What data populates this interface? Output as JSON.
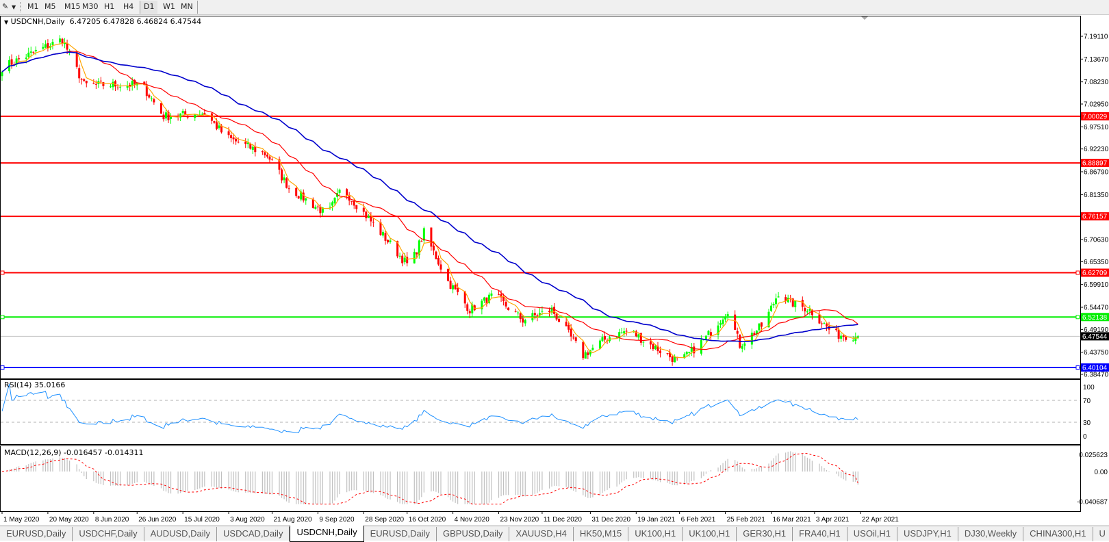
{
  "toolbar": {
    "timeframes": [
      "M1",
      "M5",
      "M15",
      "M30",
      "H1",
      "H4",
      "D1",
      "W1",
      "MN"
    ],
    "active_timeframe": "D1"
  },
  "chart": {
    "symbol_label": "USDCNH,Daily",
    "ohlc_text": "6.47205 6.47828 6.46824 6.47544",
    "rsi_label": "RSI(14) 35.0166",
    "macd_label": "MACD(12,26,9) -0.016457 -0.014311"
  },
  "chart_data": {
    "type": "candlestick",
    "symbol": "USDCNH",
    "timeframe": "Daily",
    "last_bar": {
      "open": 6.47205,
      "high": 6.47828,
      "low": 6.46824,
      "close": 6.47544
    },
    "ylim": [
      6.3847,
      7.1911
    ],
    "y_ticks": [
      "7.19110",
      "7.13670",
      "7.08230",
      "7.02950",
      "6.97510",
      "6.92230",
      "6.86790",
      "6.81350",
      "6.70630",
      "6.65350",
      "6.59910",
      "6.54470",
      "6.49190",
      "6.43750",
      "6.38470"
    ],
    "x_ticks": [
      "1 May 2020",
      "20 May 2020",
      "8 Jun 2020",
      "26 Jun 2020",
      "15 Jul 2020",
      "3 Aug 2020",
      "21 Aug 2020",
      "9 Sep 2020",
      "28 Sep 2020",
      "16 Oct 2020",
      "4 Nov 2020",
      "23 Nov 2020",
      "11 Dec 2020",
      "31 Dec 2020",
      "19 Jan 2021",
      "6 Feb 2021",
      "25 Feb 2021",
      "16 Mar 2021",
      "3 Apr 2021",
      "22 Apr 2021"
    ],
    "x_tick_dates": [
      "2020-05-01",
      "2020-05-20",
      "2020-06-08",
      "2020-06-26",
      "2020-07-15",
      "2020-08-03",
      "2020-08-21",
      "2020-09-09",
      "2020-09-28",
      "2020-10-16",
      "2020-11-04",
      "2020-11-23",
      "2020-12-11",
      "2020-12-31",
      "2021-01-19",
      "2021-02-06",
      "2021-02-25",
      "2021-03-16",
      "2021-04-03",
      "2021-04-22"
    ],
    "close_path": [
      [
        "2020-05-01",
        7.117
      ],
      [
        "2020-05-26",
        7.184
      ],
      [
        "2020-06-04",
        7.075
      ],
      [
        "2020-06-28",
        7.075
      ],
      [
        "2020-07-07",
        7.0
      ],
      [
        "2020-07-24",
        7.008
      ],
      [
        "2020-08-02",
        6.95
      ],
      [
        "2020-08-19",
        6.908
      ],
      [
        "2020-08-28",
        6.83
      ],
      [
        "2020-09-13",
        6.765
      ],
      [
        "2020-09-19",
        6.83
      ],
      [
        "2020-10-05",
        6.723
      ],
      [
        "2020-10-17",
        6.64
      ],
      [
        "2020-10-23",
        6.723
      ],
      [
        "2020-11-02",
        6.606
      ],
      [
        "2020-11-11",
        6.539
      ],
      [
        "2020-11-21",
        6.573
      ],
      [
        "2020-12-03",
        6.514
      ],
      [
        "2020-12-15",
        6.539
      ],
      [
        "2020-12-28",
        6.43
      ],
      [
        "2021-01-07",
        6.472
      ],
      [
        "2021-01-16",
        6.49
      ],
      [
        "2021-01-25",
        6.455
      ],
      [
        "2021-02-06",
        6.413
      ],
      [
        "2021-02-17",
        6.472
      ],
      [
        "2021-02-26",
        6.539
      ],
      [
        "2021-03-03",
        6.455
      ],
      [
        "2021-03-13",
        6.505
      ],
      [
        "2021-03-19",
        6.58
      ],
      [
        "2021-03-24",
        6.556
      ],
      [
        "2021-04-01",
        6.539
      ],
      [
        "2021-04-11",
        6.48
      ],
      [
        "2021-04-21",
        6.47544
      ]
    ],
    "moving_averages": [
      {
        "color": "#ffa500"
      },
      {
        "color": "#ff0000"
      },
      {
        "color": "#0000cc"
      }
    ],
    "levels": [
      {
        "value": "7.00029",
        "color": "#ff0000"
      },
      {
        "value": "6.88897",
        "color": "#ff0000"
      },
      {
        "value": "6.76157",
        "color": "#ff0000"
      },
      {
        "value": "6.62709",
        "color": "#ff0000"
      },
      {
        "value": "6.52138",
        "color": "#00ee00"
      },
      {
        "value": "6.40104",
        "color": "#0000ff"
      }
    ],
    "current_price": {
      "value": "6.47544",
      "color": "#000000"
    },
    "up_color": "#00ff00",
    "down_color": "#ff0000",
    "rsi": {
      "period": 14,
      "value": 35.0166,
      "levels": [
        70,
        30
      ],
      "ticks": [
        "100",
        "70",
        "30",
        "0"
      ],
      "color": "#1e90ff"
    },
    "macd": {
      "fast": 12,
      "slow": 26,
      "signal": 9,
      "main": -0.016457,
      "signal_value": -0.014311,
      "ticks": [
        "0.025623",
        "0.00",
        "-0.040687"
      ],
      "ylim": [
        -0.040687,
        0.025623
      ]
    }
  },
  "tabs": [
    {
      "label": "EURUSD,Daily"
    },
    {
      "label": "USDCHF,Daily"
    },
    {
      "label": "AUDUSD,Daily"
    },
    {
      "label": "USDCAD,Daily"
    },
    {
      "label": "USDCNH,Daily",
      "active": true
    },
    {
      "label": "EURUSD,Daily"
    },
    {
      "label": "GBPUSD,Daily"
    },
    {
      "label": "XAUUSD,H4"
    },
    {
      "label": "HK50,M15"
    },
    {
      "label": "UK100,H1"
    },
    {
      "label": "UK100,H1"
    },
    {
      "label": "GER30,H1"
    },
    {
      "label": "FRA40,H1"
    },
    {
      "label": "USOil,H1"
    },
    {
      "label": "USDJPY,H1"
    },
    {
      "label": "DJ30,Weekly"
    },
    {
      "label": "CHINA300,H1"
    },
    {
      "label": "U"
    }
  ]
}
